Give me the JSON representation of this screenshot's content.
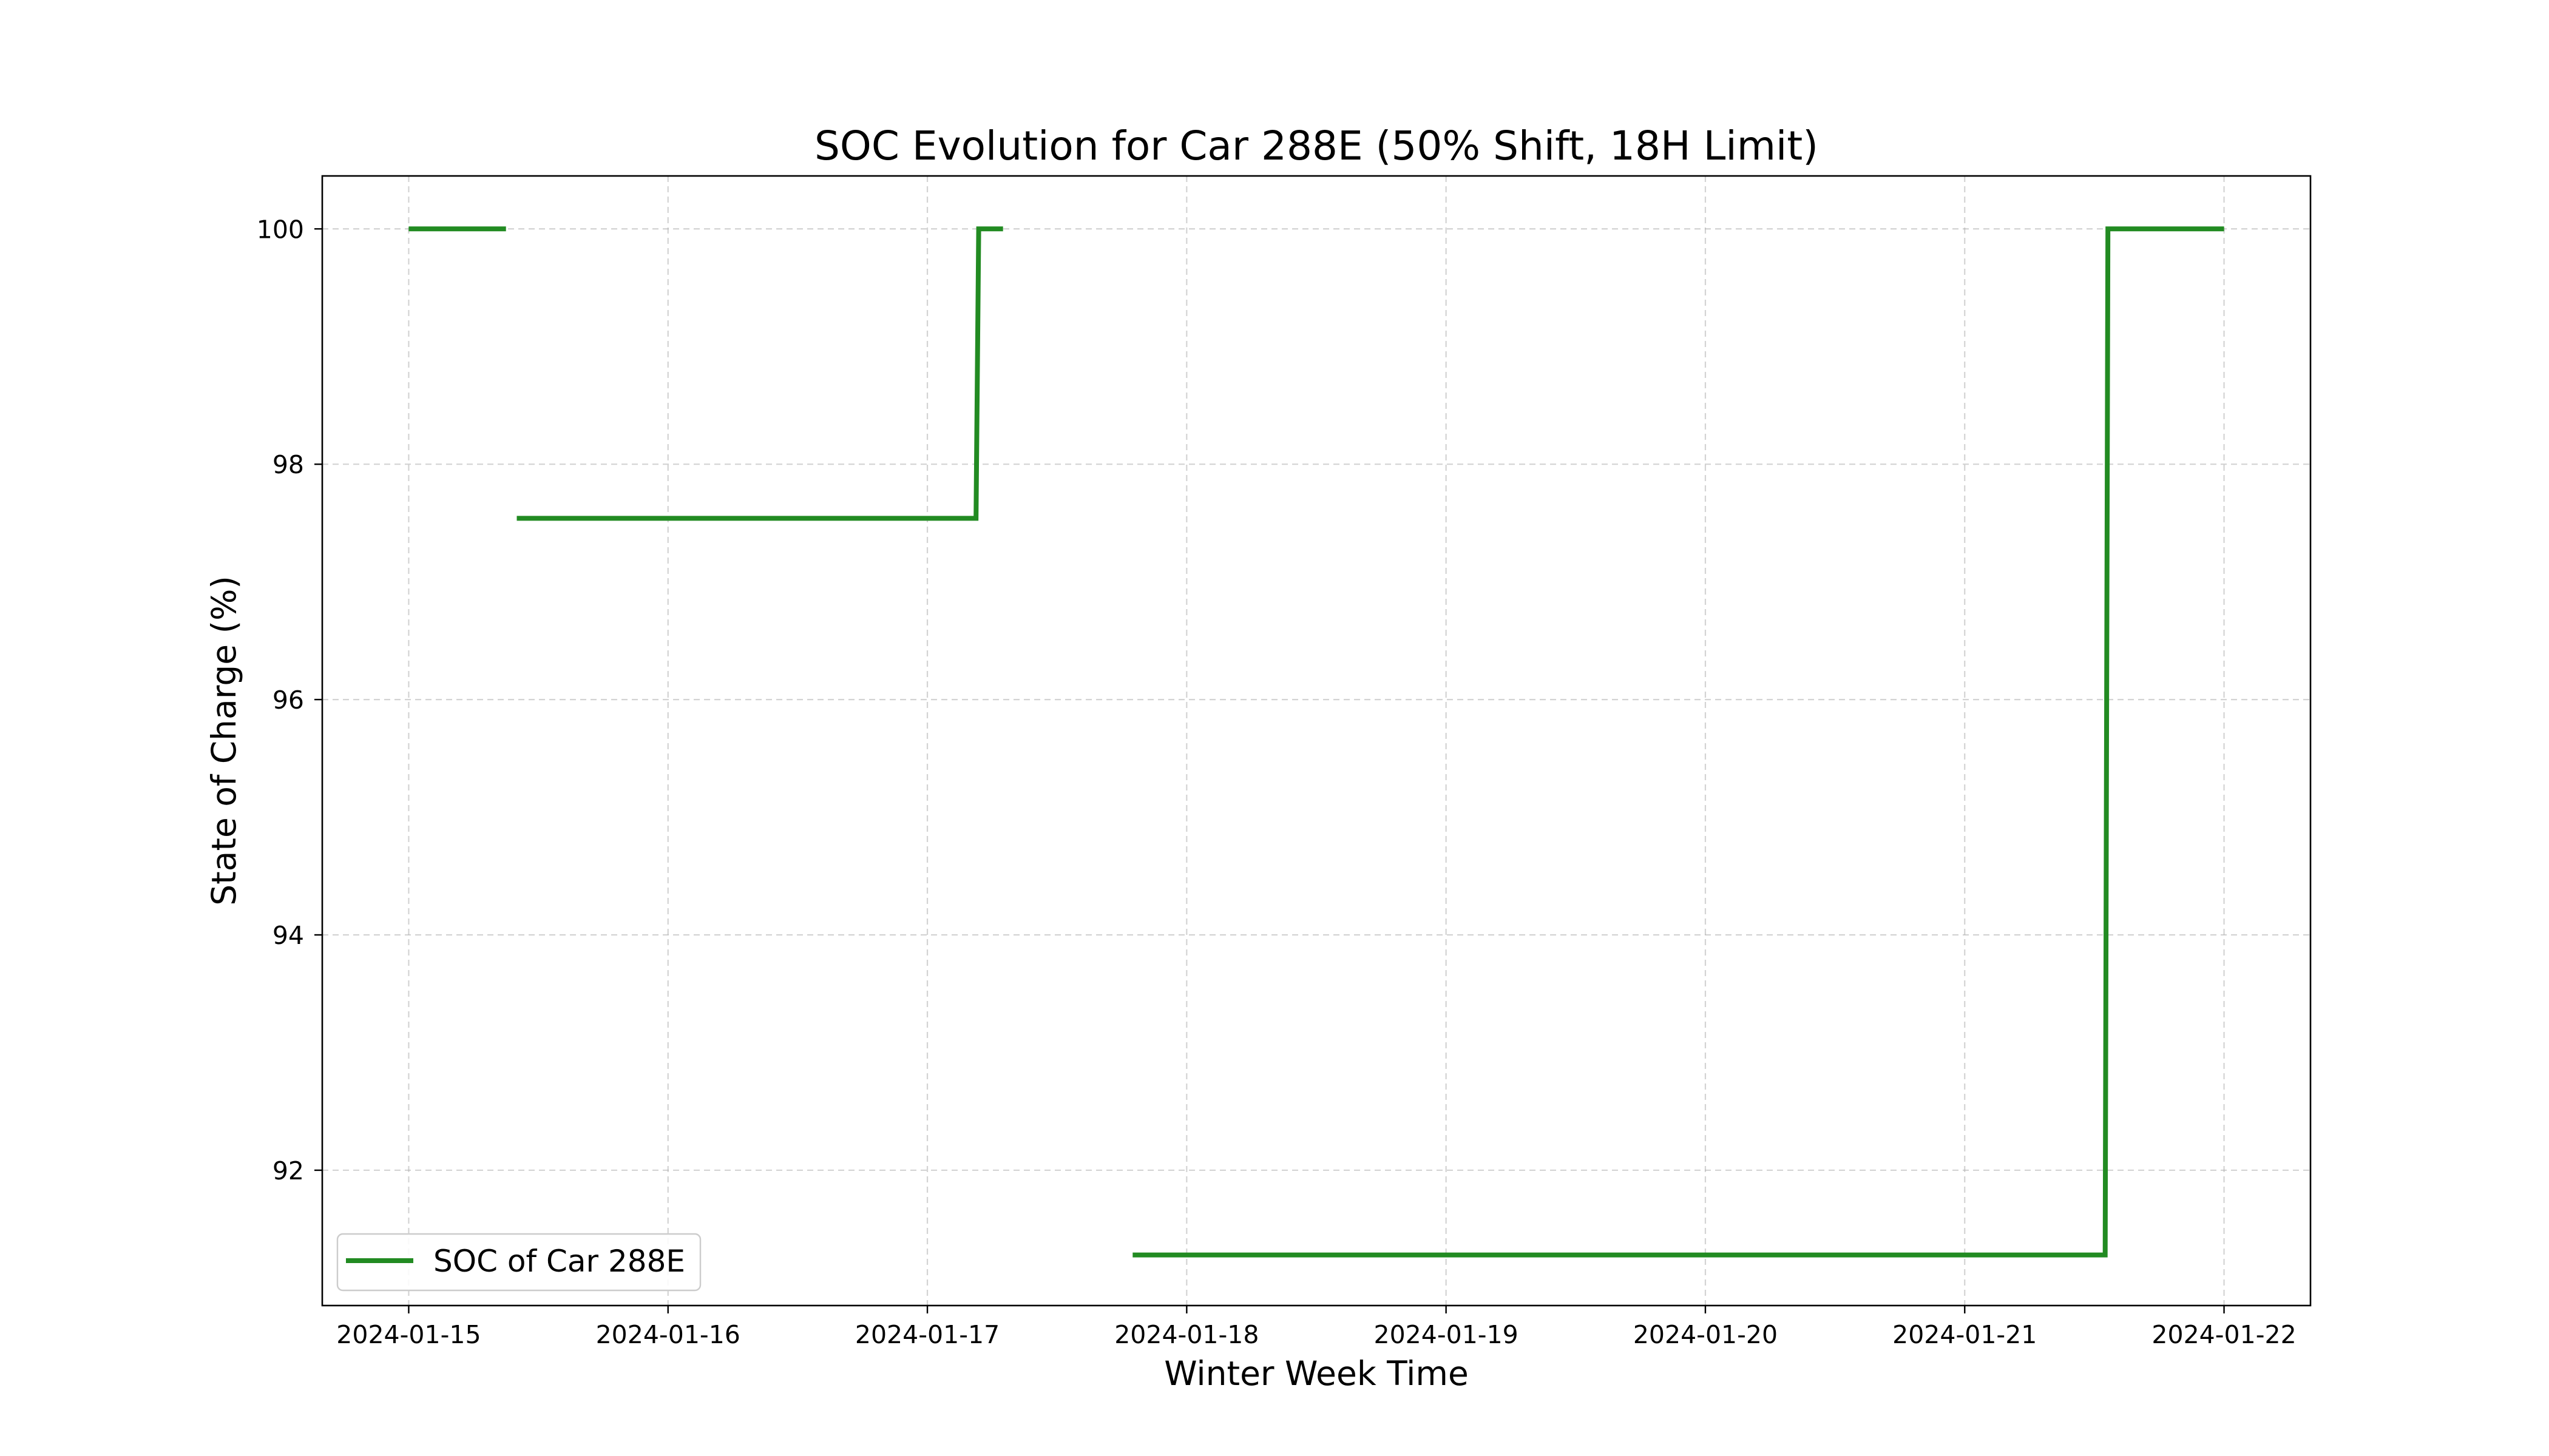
{
  "chart_data": {
    "type": "line",
    "title": "SOC Evolution for Car 288E (50% Shift, 18H Limit)",
    "xlabel": "Winter Week Time",
    "ylabel": "State of Charge (%)",
    "x_type": "datetime",
    "xlim": [
      "2024-01-14T16:00",
      "2024-01-22T08:00"
    ],
    "ylim": [
      90.85,
      100.45
    ],
    "x_ticks": [
      "2024-01-15",
      "2024-01-16",
      "2024-01-17",
      "2024-01-18",
      "2024-01-19",
      "2024-01-20",
      "2024-01-21",
      "2024-01-22"
    ],
    "y_ticks": [
      92,
      94,
      96,
      98,
      100
    ],
    "y_tick_labels": [
      "92",
      "94",
      "96",
      "98",
      "100"
    ],
    "grid": true,
    "legend_position": "lower-left",
    "line_style": "step",
    "colors": {
      "soc_line": "#228b22",
      "axes": "#000000",
      "grid": "#b0b0b0"
    },
    "series": [
      {
        "name": "SOC of Car 288E",
        "color": "#228b22",
        "segments": [
          {
            "x": [
              "2024-01-15T00:00",
              "2024-01-15T09:00"
            ],
            "y": [
              100,
              100
            ]
          },
          {
            "x": [
              "2024-01-15T10:00",
              "2024-01-17T04:30",
              "2024-01-17T04:45",
              "2024-01-17T07:00"
            ],
            "y": [
              97.54,
              97.54,
              100,
              100
            ]
          },
          {
            "x": [
              "2024-01-17T19:00",
              "2024-01-21T13:00",
              "2024-01-21T13:15",
              "2024-01-22T00:00"
            ],
            "y": [
              91.28,
              91.28,
              100,
              100
            ]
          }
        ]
      }
    ]
  }
}
